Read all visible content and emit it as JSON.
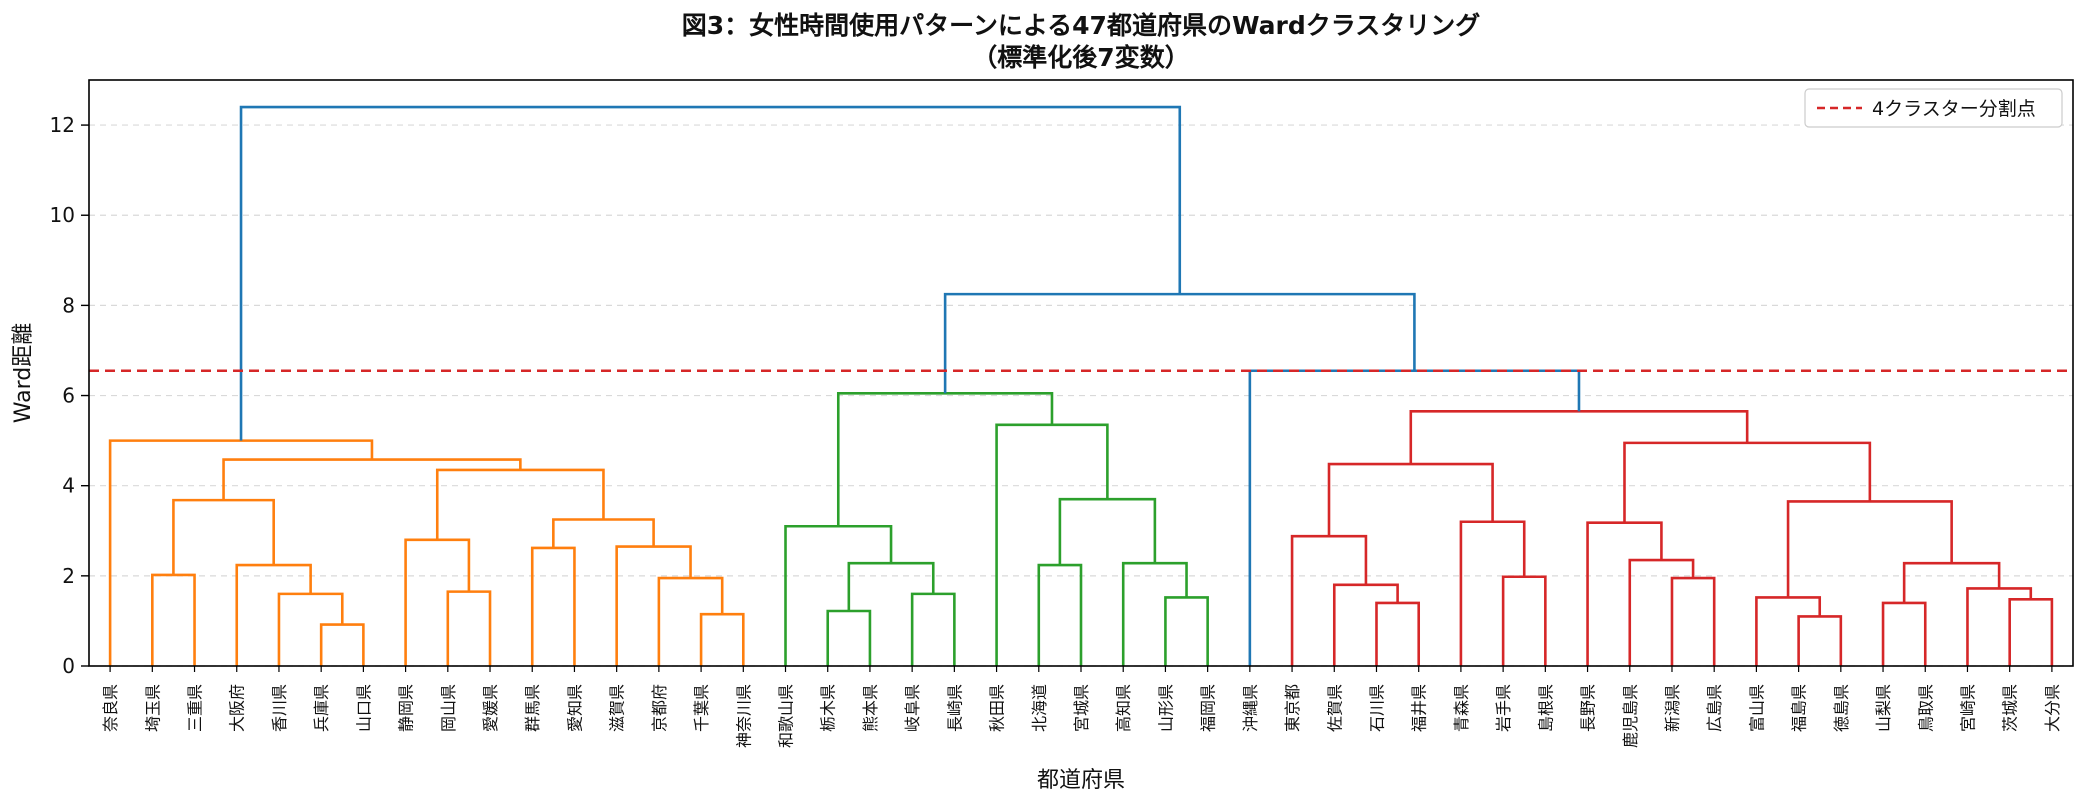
{
  "chart_data": {
    "type": "dendrogram",
    "title": "図3：女性時間使用パターンによる47都道府県のWardクラスタリング",
    "subtitle": "（標準化後7変数）",
    "xlabel": "都道府県",
    "ylabel": "Ward距離",
    "ylim": [
      0,
      13
    ],
    "yticks": [
      0,
      2,
      4,
      6,
      8,
      10,
      12
    ],
    "grid": "horizontal dashed",
    "legend_position": "top-right",
    "cut_line": {
      "value": 6.55,
      "label": "4クラスター分割点",
      "color": "#d62728",
      "style": "dashed"
    },
    "leaves": [
      "奈良県",
      "埼玉県",
      "三重県",
      "大阪府",
      "香川県",
      "兵庫県",
      "山口県",
      "静岡県",
      "岡山県",
      "愛媛県",
      "群馬県",
      "愛知県",
      "滋賀県",
      "京都府",
      "千葉県",
      "神奈川県",
      "和歌山県",
      "栃木県",
      "熊本県",
      "岐阜県",
      "長崎県",
      "秋田県",
      "北海道",
      "宮城県",
      "高知県",
      "山形県",
      "福岡県",
      "沖縄県",
      "東京都",
      "佐賀県",
      "石川県",
      "福井県",
      "青森県",
      "岩手県",
      "島根県",
      "長野県",
      "鹿児島県",
      "新潟県",
      "広島県",
      "富山県",
      "福島県",
      "徳島県",
      "山梨県",
      "鳥取県",
      "宮崎県",
      "茨城県",
      "大分県"
    ],
    "merges": [
      {
        "left": "L5",
        "right": "L6",
        "height": 0.92,
        "color": "#ff7f0e"
      },
      {
        "left": "L4",
        "right": "m0",
        "height": 1.6,
        "color": "#ff7f0e"
      },
      {
        "left": "L3",
        "right": "m1",
        "height": 2.24,
        "color": "#ff7f0e"
      },
      {
        "left": "L1",
        "right": "L2",
        "height": 2.02,
        "color": "#ff7f0e"
      },
      {
        "left": "m3",
        "right": "m2",
        "height": 3.68,
        "color": "#ff7f0e"
      },
      {
        "left": "L8",
        "right": "L9",
        "height": 1.65,
        "color": "#ff7f0e"
      },
      {
        "left": "L7",
        "right": "m5",
        "height": 2.8,
        "color": "#ff7f0e"
      },
      {
        "left": "L10",
        "right": "L11",
        "height": 2.62,
        "color": "#ff7f0e"
      },
      {
        "left": "L14",
        "right": "L15",
        "height": 1.15,
        "color": "#ff7f0e"
      },
      {
        "left": "L13",
        "right": "m8",
        "height": 1.95,
        "color": "#ff7f0e"
      },
      {
        "left": "L12",
        "right": "m9",
        "height": 2.65,
        "color": "#ff7f0e"
      },
      {
        "left": "m7",
        "right": "m10",
        "height": 3.25,
        "color": "#ff7f0e"
      },
      {
        "left": "m6",
        "right": "m11",
        "height": 4.35,
        "color": "#ff7f0e"
      },
      {
        "left": "m4",
        "right": "m12",
        "height": 4.58,
        "color": "#ff7f0e"
      },
      {
        "left": "L0",
        "right": "m13",
        "height": 5.0,
        "color": "#ff7f0e"
      },
      {
        "left": "L17",
        "right": "L18",
        "height": 1.22,
        "color": "#2ca02c"
      },
      {
        "left": "L19",
        "right": "L20",
        "height": 1.6,
        "color": "#2ca02c"
      },
      {
        "left": "m15",
        "right": "m16",
        "height": 2.28,
        "color": "#2ca02c"
      },
      {
        "left": "L16",
        "right": "m17",
        "height": 3.1,
        "color": "#2ca02c"
      },
      {
        "left": "L22",
        "right": "L23",
        "height": 2.24,
        "color": "#2ca02c"
      },
      {
        "left": "L25",
        "right": "L26",
        "height": 1.52,
        "color": "#2ca02c"
      },
      {
        "left": "L24",
        "right": "m20",
        "height": 2.28,
        "color": "#2ca02c"
      },
      {
        "left": "m19",
        "right": "m21",
        "height": 3.7,
        "color": "#2ca02c"
      },
      {
        "left": "L21",
        "right": "m22",
        "height": 5.35,
        "color": "#2ca02c"
      },
      {
        "left": "m18",
        "right": "m23",
        "height": 6.05,
        "color": "#2ca02c"
      },
      {
        "left": "L30",
        "right": "L31",
        "height": 1.4,
        "color": "#d62728"
      },
      {
        "left": "L29",
        "right": "m25",
        "height": 1.8,
        "color": "#d62728"
      },
      {
        "left": "L28",
        "right": "m26",
        "height": 2.88,
        "color": "#d62728"
      },
      {
        "left": "L33",
        "right": "L34",
        "height": 1.98,
        "color": "#d62728"
      },
      {
        "left": "L32",
        "right": "m28",
        "height": 3.2,
        "color": "#d62728"
      },
      {
        "left": "m27",
        "right": "m29",
        "height": 4.48,
        "color": "#d62728"
      },
      {
        "left": "L37",
        "right": "L38",
        "height": 1.95,
        "color": "#d62728"
      },
      {
        "left": "L36",
        "right": "m31",
        "height": 2.35,
        "color": "#d62728"
      },
      {
        "left": "L35",
        "right": "m32",
        "height": 3.18,
        "color": "#d62728"
      },
      {
        "left": "L40",
        "right": "L41",
        "height": 1.1,
        "color": "#d62728"
      },
      {
        "left": "L39",
        "right": "m34",
        "height": 1.52,
        "color": "#d62728"
      },
      {
        "left": "L42",
        "right": "L43",
        "height": 1.4,
        "color": "#d62728"
      },
      {
        "left": "L45",
        "right": "L46",
        "height": 1.48,
        "color": "#d62728"
      },
      {
        "left": "L44",
        "right": "m37",
        "height": 1.72,
        "color": "#d62728"
      },
      {
        "left": "m36",
        "right": "m38",
        "height": 2.28,
        "color": "#d62728"
      },
      {
        "left": "m35",
        "right": "m39",
        "height": 3.65,
        "color": "#d62728"
      },
      {
        "left": "m33",
        "right": "m40",
        "height": 4.95,
        "color": "#d62728"
      },
      {
        "left": "m30",
        "right": "m41",
        "height": 5.65,
        "color": "#d62728"
      },
      {
        "left": "L27",
        "right": "m42",
        "height": 6.55,
        "color": "#1f77b4"
      },
      {
        "left": "m24",
        "right": "m43",
        "height": 8.25,
        "color": "#1f77b4"
      },
      {
        "left": "m14",
        "right": "m44",
        "height": 12.4,
        "color": "#1f77b4"
      }
    ]
  }
}
